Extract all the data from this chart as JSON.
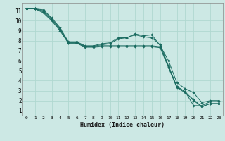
{
  "xlabel": "Humidex (Indice chaleur)",
  "bg_color": "#cce8e4",
  "grid_color": "#b0d8d0",
  "line_color": "#1a6b60",
  "spine_color": "#888888",
  "xlim": [
    -0.5,
    23.5
  ],
  "ylim": [
    0.5,
    11.8
  ],
  "xticks": [
    0,
    1,
    2,
    3,
    4,
    5,
    6,
    7,
    8,
    9,
    10,
    11,
    12,
    13,
    14,
    15,
    16,
    17,
    18,
    19,
    20,
    21,
    22,
    23
  ],
  "yticks": [
    1,
    2,
    3,
    4,
    5,
    6,
    7,
    8,
    9,
    10,
    11
  ],
  "series": [
    [
      11.2,
      11.2,
      11.1,
      10.3,
      9.3,
      7.9,
      7.9,
      7.5,
      7.5,
      7.7,
      7.8,
      8.3,
      8.3,
      8.7,
      8.5,
      8.6,
      7.5,
      6.0,
      3.8,
      3.2,
      2.8,
      1.8,
      2.0,
      2.0
    ],
    [
      11.2,
      11.2,
      11.0,
      10.2,
      9.2,
      7.85,
      7.85,
      7.45,
      7.45,
      7.6,
      7.7,
      8.2,
      8.3,
      8.6,
      8.4,
      8.3,
      7.6,
      5.5,
      3.4,
      2.9,
      1.5,
      1.5,
      1.9,
      1.9
    ],
    [
      11.2,
      11.2,
      10.9,
      10.1,
      9.1,
      7.8,
      7.8,
      7.4,
      7.4,
      7.5,
      7.5,
      7.5,
      7.5,
      7.5,
      7.5,
      7.5,
      7.4,
      5.4,
      3.4,
      2.9,
      2.0,
      1.4,
      1.7,
      1.7
    ],
    [
      11.2,
      11.2,
      10.8,
      10.0,
      9.0,
      7.75,
      7.75,
      7.35,
      7.35,
      7.4,
      7.4,
      7.4,
      7.4,
      7.4,
      7.4,
      7.4,
      7.3,
      5.3,
      3.3,
      2.8,
      2.1,
      1.4,
      1.7,
      1.7
    ]
  ]
}
